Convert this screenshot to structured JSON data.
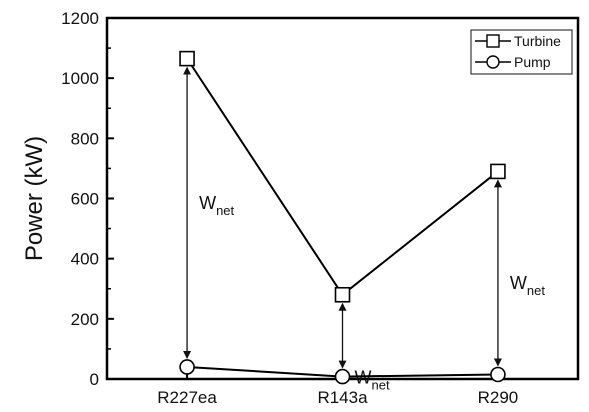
{
  "chart_data": {
    "type": "line",
    "title": "",
    "xlabel": "",
    "ylabel": "Power (kW)",
    "categories": [
      "R227ea",
      "R143a",
      "R290"
    ],
    "ylim": [
      0,
      1200
    ],
    "yticks": [
      0,
      200,
      400,
      600,
      800,
      1000,
      1200
    ],
    "series": [
      {
        "name": "Turbine",
        "marker": "square",
        "values": [
          1065,
          280,
          690
        ]
      },
      {
        "name": "Pump",
        "marker": "circle",
        "values": [
          40,
          8,
          15
        ]
      }
    ],
    "annotations": [
      {
        "category": "R227ea",
        "from": 40,
        "to": 1065,
        "label": "W",
        "subscript": "net"
      },
      {
        "category": "R143a",
        "from": 8,
        "to": 280,
        "label": "W",
        "subscript": "net"
      },
      {
        "category": "R290",
        "from": 15,
        "to": 690,
        "label": "W",
        "subscript": "net"
      }
    ],
    "legend_position": "top-right",
    "grid": false,
    "line_color": "#000000"
  }
}
